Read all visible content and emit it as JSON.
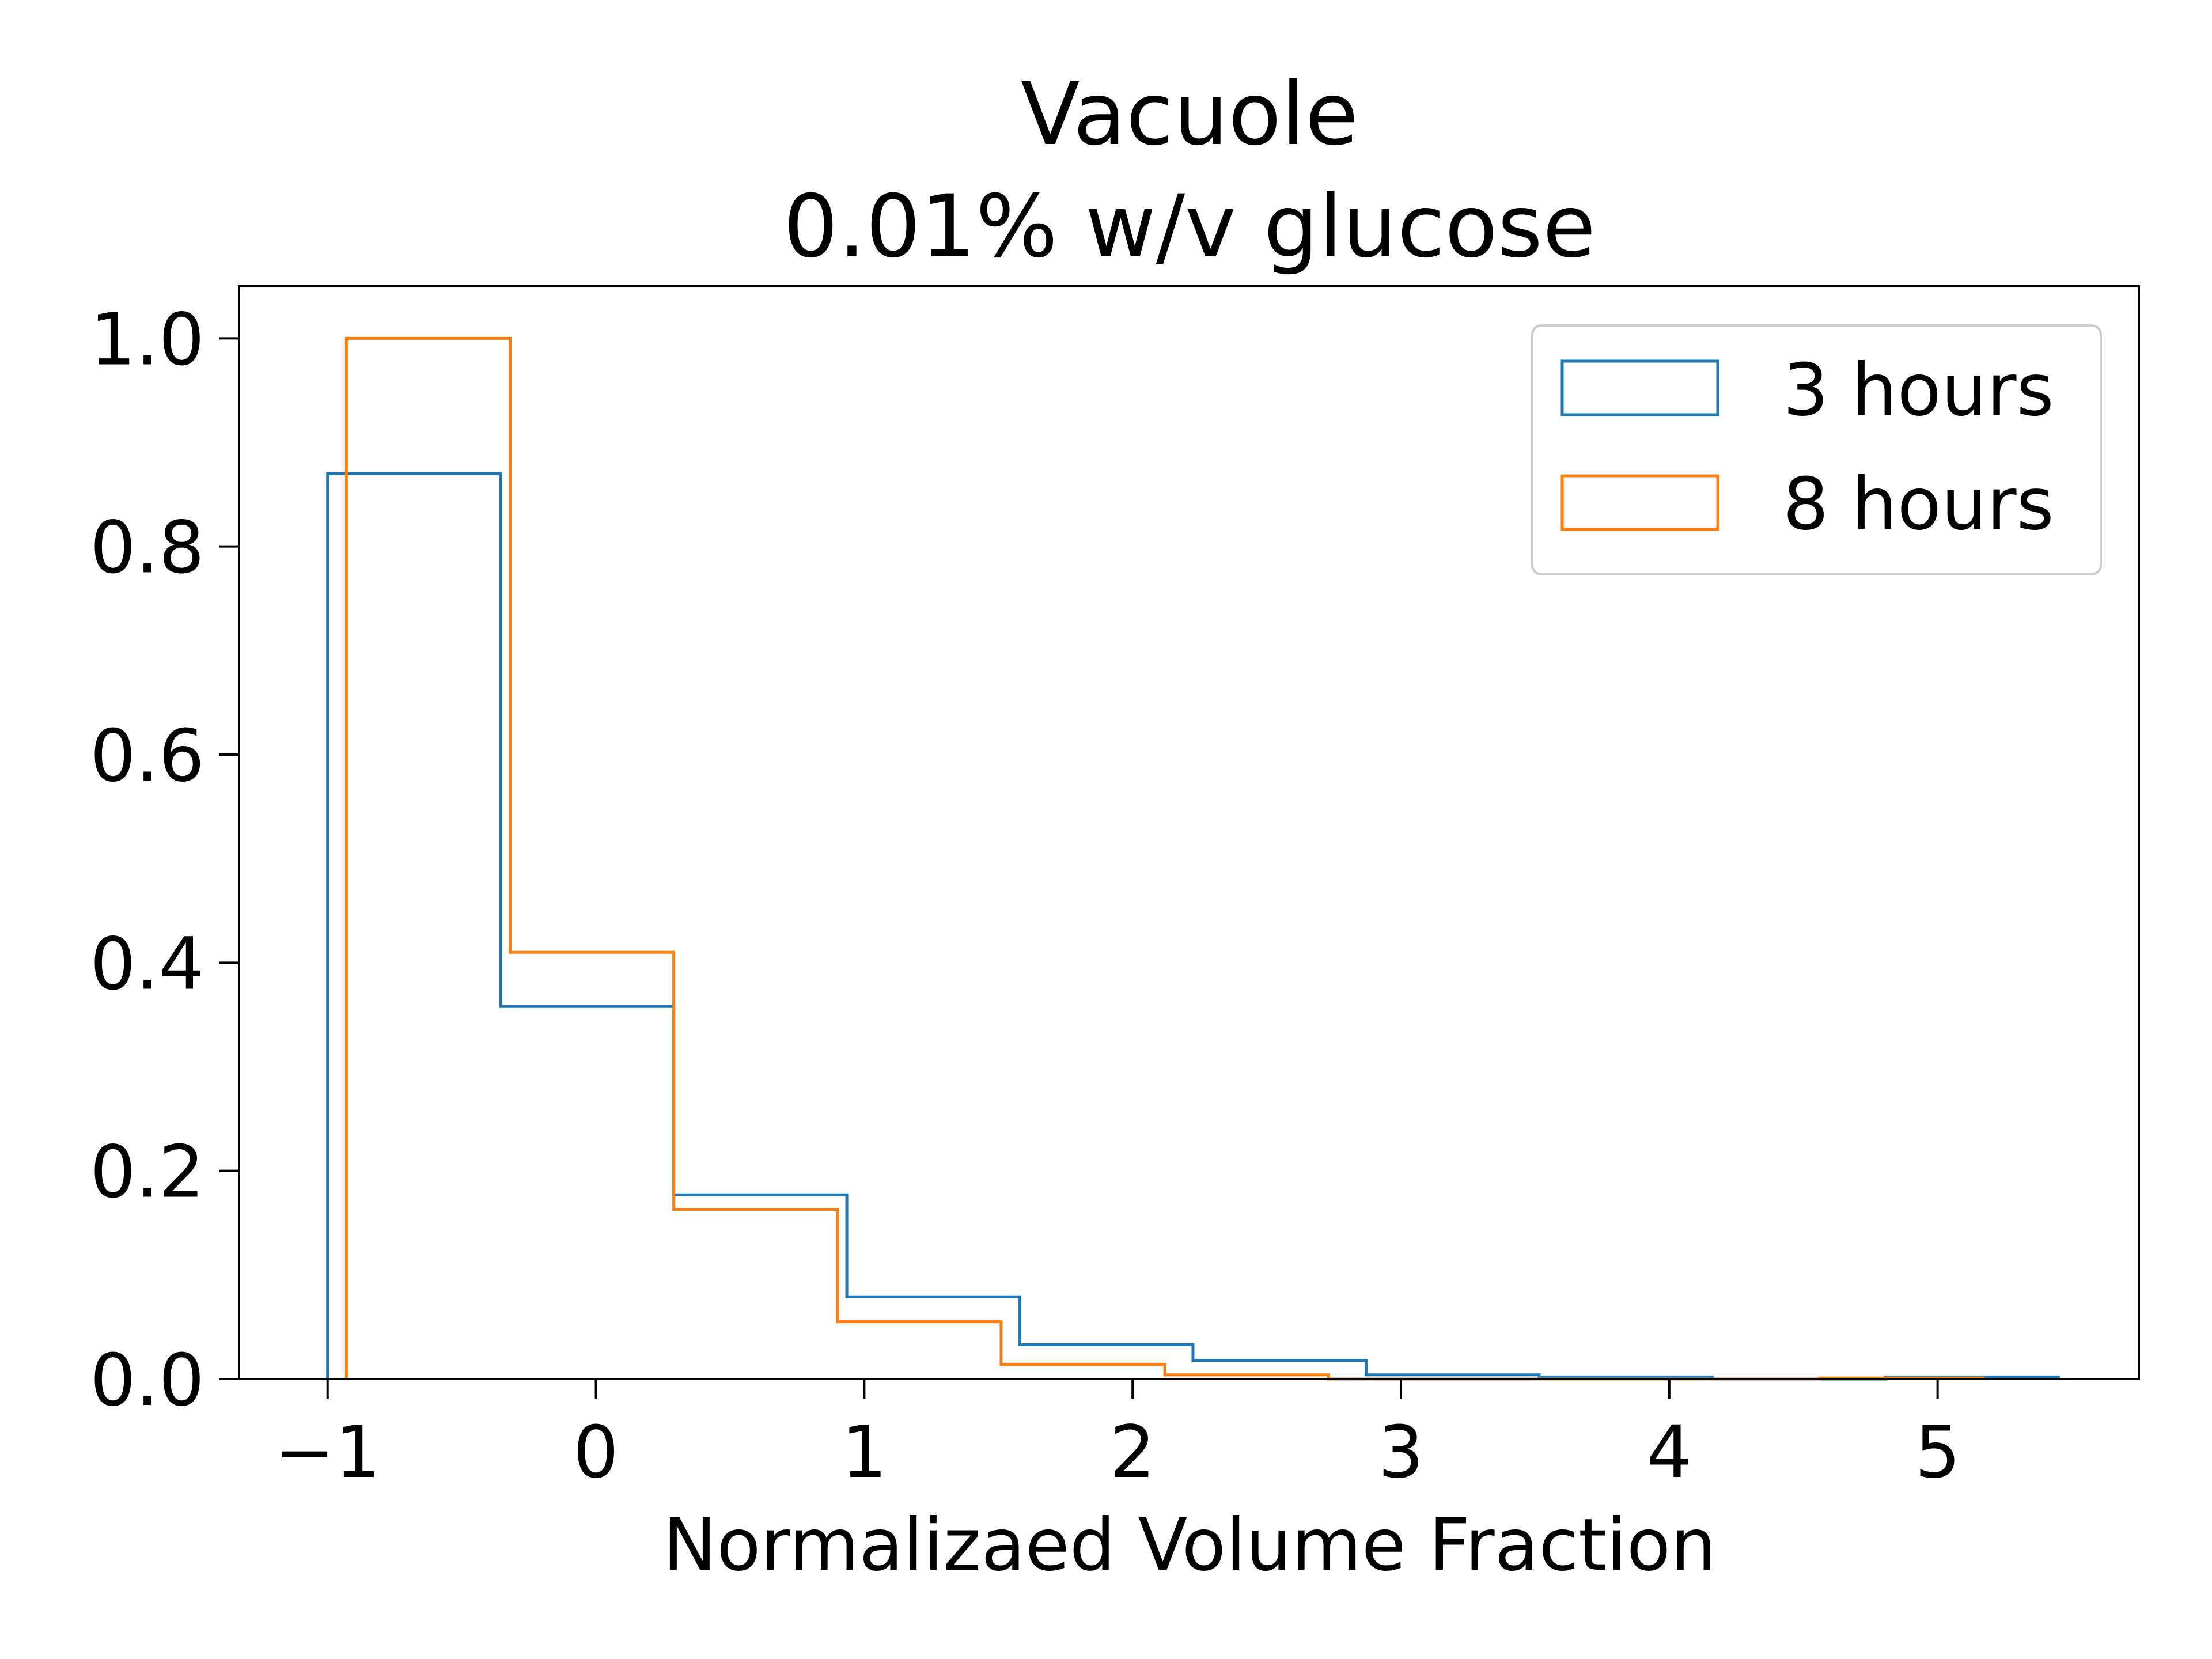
{
  "chart_data": {
    "type": "histogram",
    "title": [
      "Vacuole",
      "0.01% w/v glucose"
    ],
    "xlabel": "Normalizaed Volume Fraction",
    "ylabel": "",
    "xlim": [
      -1.33,
      5.75
    ],
    "ylim": [
      0,
      1.05
    ],
    "xticks": [
      -1,
      0,
      1,
      2,
      3,
      4,
      5
    ],
    "xtick_labels": [
      "−1",
      "0",
      "1",
      "2",
      "3",
      "4",
      "5"
    ],
    "yticks": [
      0.0,
      0.2,
      0.4,
      0.6,
      0.8,
      1.0
    ],
    "ytick_labels": [
      "0.0",
      "0.2",
      "0.4",
      "0.6",
      "0.8",
      "1.0"
    ],
    "grid": false,
    "legend_position": "top-right",
    "series": [
      {
        "name": "3 hours",
        "color": "#1f77b4",
        "bin_edges": [
          -1.0,
          -0.355,
          0.29,
          0.935,
          1.58,
          2.225,
          2.87,
          3.515,
          4.16,
          4.805,
          5.45
        ],
        "values": [
          0.87,
          0.358,
          0.177,
          0.079,
          0.033,
          0.018,
          0.004,
          0.002,
          0.0,
          0.002
        ]
      },
      {
        "name": "8 hours",
        "color": "#ff7f0e",
        "bin_edges": [
          -0.93,
          -0.32,
          0.29,
          0.9,
          1.51,
          2.12,
          2.73,
          3.34,
          3.95,
          4.56,
          5.17
        ],
        "values": [
          1.0,
          0.41,
          0.163,
          0.055,
          0.014,
          0.004,
          0.0,
          0.0,
          0.0,
          0.001
        ]
      }
    ]
  }
}
